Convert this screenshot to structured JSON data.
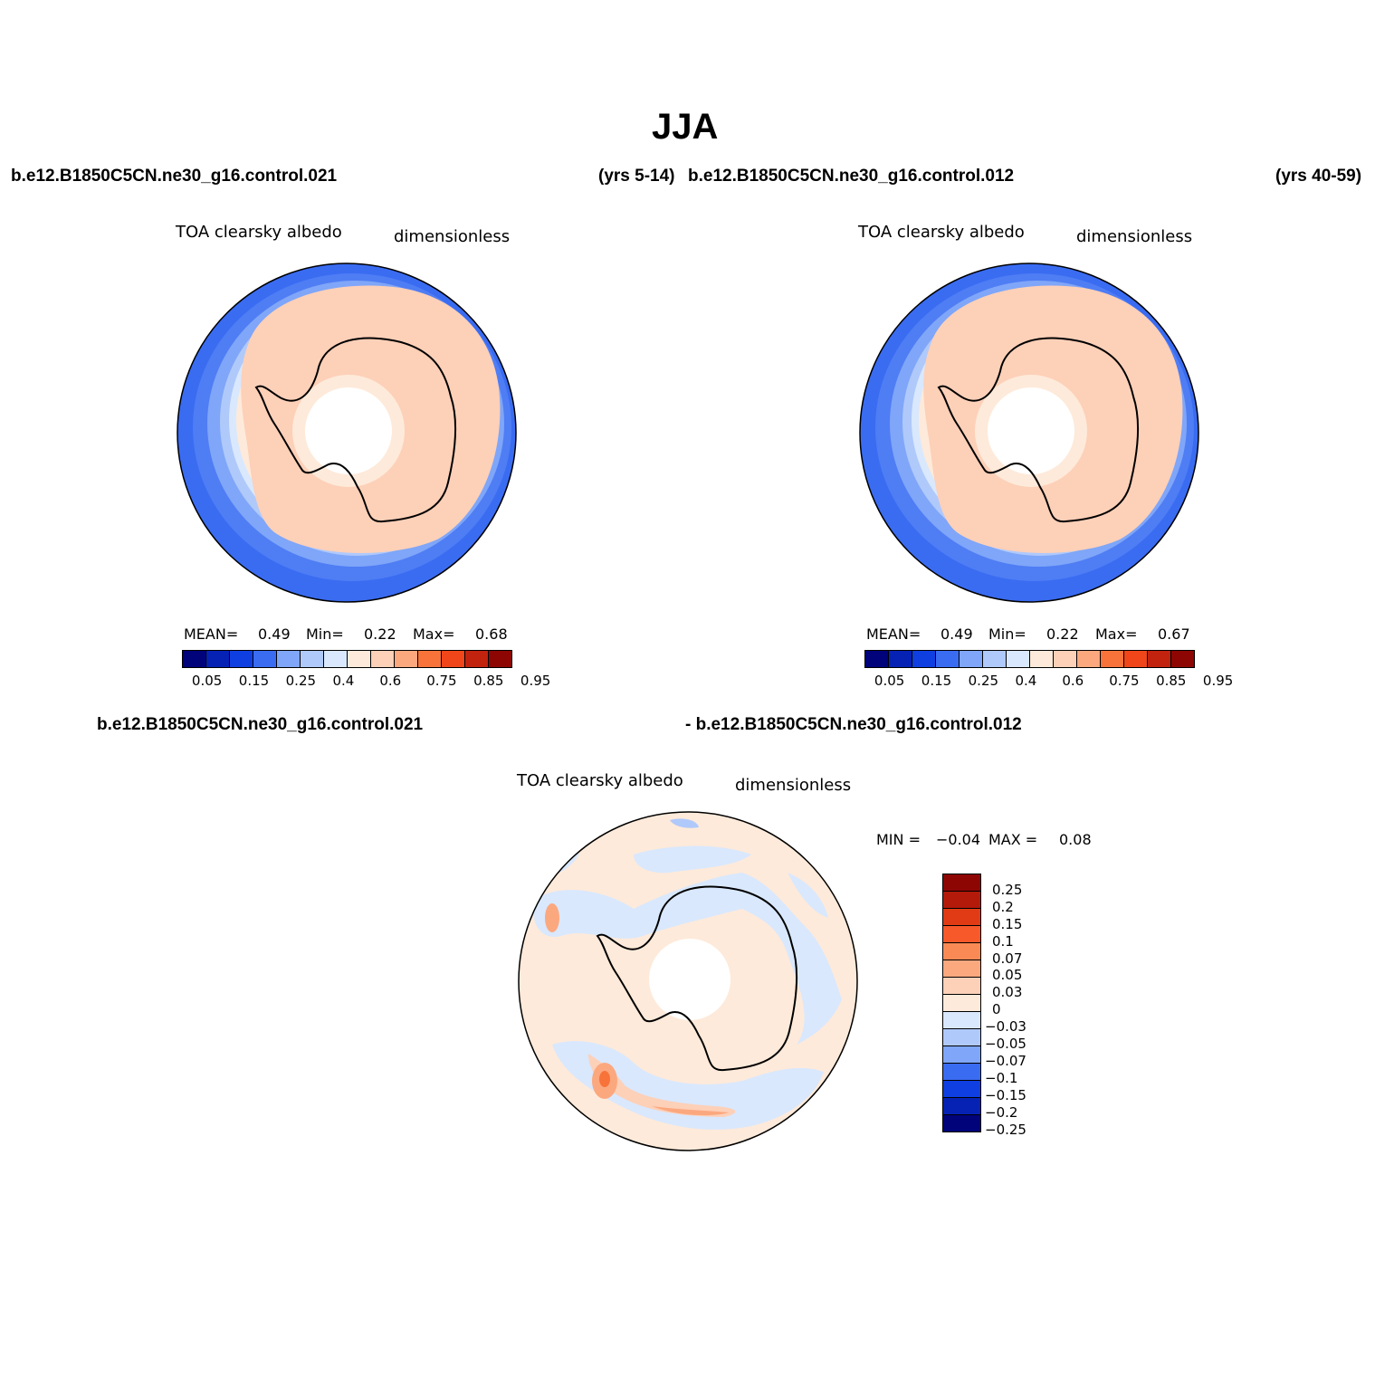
{
  "title": "JJA",
  "top_left": {
    "case": "b.e12.B1850C5CN.ne30_g16.control.021",
    "years": "(yrs 5-14)",
    "variable": "TOA clearsky albedo",
    "units": "dimensionless",
    "mean_label": "MEAN=",
    "mean": "0.49",
    "min_label": "Min=",
    "min": "0.22",
    "max_label": "Max=",
    "max": "0.68"
  },
  "top_right": {
    "case": "b.e12.B1850C5CN.ne30_g16.control.012",
    "years": "(yrs 40-59)",
    "variable": "TOA clearsky albedo",
    "units": "dimensionless",
    "mean_label": "MEAN=",
    "mean": "0.49",
    "min_label": "Min=",
    "min": "0.22",
    "max_label": "Max=",
    "max": "0.67"
  },
  "diff": {
    "case_a": "b.e12.B1850C5CN.ne30_g16.control.021",
    "case_b": "- b.e12.B1850C5CN.ne30_g16.control.012",
    "variable": "TOA clearsky albedo",
    "units": "dimensionless",
    "min_label": "MIN =",
    "min": "−0.04",
    "max_label": "MAX =",
    "max": "0.08"
  },
  "colorbar_abs": {
    "ticks": [
      "0.05",
      "0.15",
      "0.25",
      "0.4",
      "0.6",
      "0.75",
      "0.85",
      "0.95"
    ],
    "colors": [
      "#00037a",
      "#0622b4",
      "#0f3fe0",
      "#3a6cf2",
      "#7fa6f8",
      "#b0c9fb",
      "#d9e8fd",
      "#feeada",
      "#fdd0b8",
      "#fba87f",
      "#f7733a",
      "#f0461a",
      "#c2230f",
      "#8d0603"
    ]
  },
  "colorbar_diff": {
    "ticks": [
      "0.25",
      "0.2",
      "0.15",
      "0.1",
      "0.07",
      "0.05",
      "0.03",
      "0",
      "−0.03",
      "−0.05",
      "−0.07",
      "−0.1",
      "−0.15",
      "−0.2",
      "−0.25"
    ],
    "colors": [
      "#8d0603",
      "#b31a0a",
      "#e03b14",
      "#f7592a",
      "#fa8a55",
      "#fba87f",
      "#fdd0b8",
      "#feeada",
      "#d9e8fd",
      "#b0c9fb",
      "#7fa6f8",
      "#3a6cf2",
      "#0f3fe0",
      "#0622b4",
      "#00037a"
    ]
  }
}
